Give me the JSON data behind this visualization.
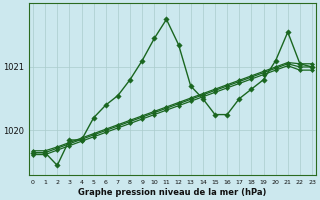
{
  "title": "Graphe pression niveau de la mer (hPa)",
  "background_color": "#cce8ee",
  "grid_color": "#aacccc",
  "line_color": "#1a6620",
  "x_values": [
    0,
    1,
    2,
    3,
    4,
    5,
    6,
    7,
    8,
    9,
    10,
    11,
    12,
    13,
    14,
    15,
    16,
    17,
    18,
    19,
    20,
    21,
    22,
    23
  ],
  "trend_series": [
    [
      1019.65,
      1019.65,
      1019.72,
      1019.79,
      1019.86,
      1019.93,
      1020.0,
      1020.07,
      1020.14,
      1020.21,
      1020.28,
      1020.35,
      1020.42,
      1020.49,
      1020.56,
      1020.63,
      1020.7,
      1020.77,
      1020.84,
      1020.91,
      1020.98,
      1021.05,
      1021.0,
      1021.0
    ],
    [
      1019.68,
      1019.68,
      1019.74,
      1019.81,
      1019.88,
      1019.95,
      1020.02,
      1020.09,
      1020.16,
      1020.23,
      1020.3,
      1020.37,
      1020.44,
      1020.51,
      1020.58,
      1020.65,
      1020.72,
      1020.79,
      1020.86,
      1020.93,
      1021.0,
      1021.07,
      1021.05,
      1021.05
    ],
    [
      1019.62,
      1019.62,
      1019.69,
      1019.76,
      1019.83,
      1019.9,
      1019.97,
      1020.04,
      1020.11,
      1020.18,
      1020.25,
      1020.32,
      1020.39,
      1020.46,
      1020.53,
      1020.6,
      1020.67,
      1020.74,
      1020.81,
      1020.88,
      1020.95,
      1021.02,
      1020.95,
      1020.95
    ]
  ],
  "main_series": [
    1019.65,
    1019.65,
    1019.45,
    1019.85,
    1019.85,
    1020.2,
    1020.4,
    1020.55,
    1020.8,
    1021.1,
    1021.45,
    1021.75,
    1021.35,
    1020.7,
    1020.5,
    1020.25,
    1020.25,
    1020.5,
    1020.65,
    1020.8,
    1021.1,
    1021.55,
    1021.05,
    1021.0
  ],
  "yticks": [
    1020,
    1021
  ],
  "ylim": [
    1019.3,
    1022.0
  ],
  "xlim": [
    -0.3,
    23.3
  ]
}
